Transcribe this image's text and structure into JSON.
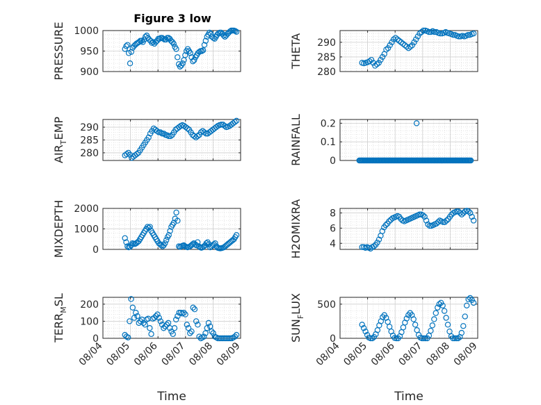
{
  "figure": {
    "title": "Figure 3 low",
    "marker_color": "#0072BD",
    "grid_color": "#d9d9d9",
    "axis_color": "#262626"
  },
  "chart_data": [
    {
      "id": "pressure",
      "type": "scatter",
      "ylabel": "PRESSURE",
      "ylim": [
        900,
        1000
      ],
      "yticks": [
        900,
        950,
        1000
      ],
      "ytick_labels": [
        "900",
        "950",
        "1000"
      ],
      "xlim": [
        0,
        5
      ],
      "xticks": [
        0,
        1,
        2,
        3,
        4,
        5
      ],
      "xtick_labels": [],
      "xlabel": "",
      "y": [
        955,
        962,
        965,
        945,
        920,
        948,
        958,
        962,
        965,
        968,
        970,
        972,
        975,
        975,
        972,
        978,
        985,
        988,
        982,
        978,
        975,
        970,
        972,
        968,
        972,
        975,
        980,
        980,
        982,
        982,
        980,
        978,
        978,
        982,
        982,
        980,
        975,
        972,
        968,
        960,
        955,
        935,
        918,
        912,
        915,
        920,
        928,
        940,
        950,
        955,
        950,
        945,
        935,
        925,
        928,
        935,
        940,
        945,
        948,
        950,
        950,
        952,
        965,
        975,
        985,
        990,
        995,
        992,
        985,
        982,
        980,
        985,
        990,
        993,
        995,
        995,
        992,
        988,
        985,
        988,
        992,
        995,
        998,
        1000,
        1000,
        1000,
        999,
        997
      ]
    },
    {
      "id": "theta",
      "type": "scatter",
      "ylabel": "THETA",
      "ylim": [
        280,
        294
      ],
      "yticks": [
        280,
        285,
        290
      ],
      "ytick_labels": [
        "280",
        "285",
        "290"
      ],
      "xlim": [
        0,
        5
      ],
      "xticks": [
        0,
        1,
        2,
        3,
        4,
        5
      ],
      "xtick_labels": [],
      "xlabel": "",
      "y": [
        283,
        282.8,
        283,
        283.2,
        283.5,
        284,
        283,
        282,
        282.5,
        283,
        284,
        285,
        286,
        287.5,
        288,
        289,
        290,
        291,
        291.5,
        291,
        290.5,
        290,
        289.5,
        289,
        288.5,
        288,
        288.5,
        289,
        290,
        291,
        292,
        293,
        293.5,
        294,
        294,
        293.8,
        293.5,
        293.5,
        293.8,
        293.5,
        293.5,
        293.2,
        293,
        293,
        293.2,
        293.5,
        293.2,
        293,
        292.8,
        292.5,
        292.5,
        292.2,
        292,
        292,
        292.2,
        292,
        292.2,
        292.5,
        292.5,
        292.8,
        293
      ]
    },
    {
      "id": "air_temp",
      "type": "scatter",
      "ylabel": "AIR",
      "ylabel_sub": "T",
      "ylabel_tail": "EMP",
      "ylim": [
        277,
        293
      ],
      "yticks": [
        280,
        285,
        290
      ],
      "ytick_labels": [
        "280",
        "285",
        "290"
      ],
      "xlim": [
        0,
        5
      ],
      "xticks": [
        0,
        1,
        2,
        3,
        4,
        5
      ],
      "xtick_labels": [],
      "xlabel": "",
      "y": [
        279,
        279.5,
        280,
        279.2,
        278,
        278.5,
        279,
        279.5,
        280,
        281,
        282,
        283,
        284,
        285,
        286,
        287.5,
        288.5,
        289.5,
        289,
        288.5,
        288,
        288,
        287.5,
        287.5,
        287,
        286.8,
        286.5,
        286.5,
        287,
        288,
        289,
        289.5,
        290,
        290.5,
        290.8,
        290.5,
        290,
        289.5,
        289,
        288,
        287,
        286.5,
        286,
        286.5,
        287,
        288,
        288.5,
        288,
        287.5,
        287.5,
        288,
        288.5,
        289,
        289.5,
        290,
        290.5,
        290.8,
        291,
        291,
        290.5,
        290,
        290.2,
        290.5,
        291,
        291.5,
        292,
        292.5
      ]
    },
    {
      "id": "rainfall",
      "type": "scatter",
      "ylabel": "RAINFALL",
      "ylim": [
        0,
        0.22
      ],
      "yticks": [
        0,
        0.1,
        0.2
      ],
      "ytick_labels": [
        "0",
        "0.1",
        "0.2"
      ],
      "xlim": [
        0,
        5
      ],
      "xticks": [
        0,
        1,
        2,
        3,
        4,
        5
      ],
      "xtick_labels": [],
      "xlabel": "",
      "zero_span": [
        0.7,
        4.75
      ],
      "zero_count": 120,
      "nonzero_points": [
        [
          2.78,
          0.2
        ]
      ]
    },
    {
      "id": "mixdepth",
      "type": "scatter",
      "ylabel": "MIXDEPTH",
      "ylim": [
        0,
        2000
      ],
      "yticks": [
        0,
        1000,
        2000
      ],
      "ytick_labels": [
        "0",
        "1000",
        "2000"
      ],
      "xlim": [
        0,
        5
      ],
      "xticks": [
        0,
        1,
        2,
        3,
        4,
        5
      ],
      "xtick_labels": [],
      "xlabel": "",
      "y": [
        550,
        350,
        150,
        100,
        120,
        200,
        300,
        280,
        260,
        300,
        350,
        400,
        500,
        600,
        700,
        800,
        900,
        1000,
        1100,
        1050,
        1100,
        900,
        800,
        700,
        600,
        500,
        400,
        300,
        250,
        200,
        150,
        200,
        300,
        450,
        600,
        700,
        900,
        1100,
        1200,
        1300,
        1500,
        1800,
        1400,
        150,
        120,
        150,
        180,
        200,
        150,
        120,
        100,
        120,
        150,
        200,
        250,
        300,
        250,
        200,
        350,
        150,
        100,
        80,
        100,
        150,
        200,
        300,
        350,
        250,
        100,
        150,
        200,
        250,
        300,
        150,
        80,
        60,
        50,
        60,
        80,
        100,
        150,
        200,
        250,
        300,
        350,
        400,
        450,
        500,
        600,
        700
      ]
    },
    {
      "id": "h2omixra",
      "type": "scatter",
      "ylabel": "H2OMIXRA",
      "ylim": [
        3.2,
        8.6
      ],
      "yticks": [
        4,
        6,
        8
      ],
      "ytick_labels": [
        "4",
        "6",
        "8"
      ],
      "xlim": [
        0,
        5
      ],
      "xticks": [
        0,
        1,
        2,
        3,
        4,
        5
      ],
      "xtick_labels": [],
      "xlabel": "",
      "y": [
        3.5,
        3.5,
        3.4,
        3.5,
        3.4,
        3.3,
        3.5,
        3.6,
        3.8,
        4.1,
        4.5,
        5,
        5.6,
        6.1,
        6.4,
        6.6,
        6.9,
        7.1,
        7.3,
        7.4,
        7.5,
        7.6,
        7.5,
        7.2,
        7,
        6.9,
        7,
        7.1,
        7.2,
        7.3,
        7.4,
        7.5,
        7.6,
        7.7,
        7.8,
        7.8,
        7.7,
        7.5,
        7,
        6.5,
        6.3,
        6.3,
        6.4,
        6.5,
        6.6,
        6.8,
        7,
        6.9,
        6.8,
        6.8,
        7,
        7.2,
        7.5,
        7.8,
        8,
        8.1,
        8.2,
        8.2,
        8,
        7.8,
        8,
        8.2,
        8.3,
        8.2,
        8,
        7.5,
        7
      ]
    },
    {
      "id": "terrmsl",
      "type": "scatter",
      "ylabel": "TERR",
      "ylabel_sub": "M",
      "ylabel_tail": "SL",
      "ylim": [
        0,
        240
      ],
      "yticks": [
        0,
        100,
        200
      ],
      "ytick_labels": [
        "0",
        "100",
        "200"
      ],
      "xlim": [
        0,
        5
      ],
      "xticks": [
        0,
        1,
        2,
        3,
        4,
        5
      ],
      "xtick_labels": [
        "08/04",
        "08/05",
        "08/06",
        "08/07",
        "08/08",
        "08/09"
      ],
      "xlabel": "Time",
      "y": [
        20,
        10,
        5,
        100,
        230,
        180,
        120,
        150,
        130,
        90,
        100,
        110,
        90,
        80,
        110,
        115,
        60,
        25,
        115,
        120,
        130,
        140,
        120,
        100,
        80,
        60,
        70,
        80,
        90,
        60,
        40,
        25,
        60,
        110,
        130,
        150,
        150,
        145,
        150,
        140,
        80,
        60,
        30,
        40,
        180,
        170,
        100,
        80,
        10,
        0,
        5,
        10,
        30,
        60,
        90,
        70,
        40,
        30,
        10,
        5,
        0,
        0,
        0,
        0,
        0,
        0,
        0,
        0,
        0,
        0,
        5,
        10,
        20
      ]
    },
    {
      "id": "sunflux",
      "type": "scatter",
      "ylabel": "SUN",
      "ylabel_sub": "F",
      "ylabel_tail": "LUX",
      "ylim": [
        0,
        600
      ],
      "yticks": [
        0,
        500
      ],
      "ytick_labels": [
        "0",
        "500"
      ],
      "xlim": [
        0,
        5
      ],
      "xticks": [
        0,
        1,
        2,
        3,
        4,
        5
      ],
      "xtick_labels": [
        "08/04",
        "08/05",
        "08/06",
        "08/07",
        "08/08",
        "08/09"
      ],
      "xlabel": "Time",
      "y": [
        200,
        150,
        100,
        50,
        10,
        0,
        0,
        20,
        60,
        120,
        190,
        250,
        310,
        340,
        300,
        240,
        170,
        100,
        40,
        5,
        0,
        0,
        30,
        90,
        160,
        230,
        290,
        340,
        370,
        340,
        280,
        200,
        120,
        50,
        10,
        0,
        0,
        0,
        0,
        40,
        110,
        190,
        280,
        370,
        450,
        500,
        520,
        480,
        400,
        300,
        200,
        100,
        30,
        0,
        0,
        0,
        0,
        20,
        80,
        180,
        320,
        480,
        570,
        590,
        560,
        520
      ]
    }
  ]
}
